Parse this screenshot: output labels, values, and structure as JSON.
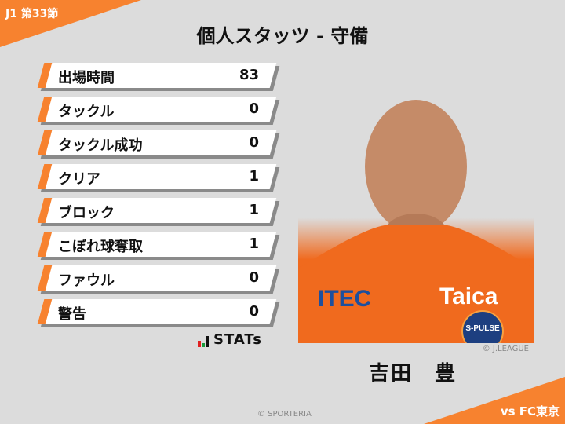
{
  "header": {
    "round": "J1 第33節",
    "title": "個人スタッツ - 守備",
    "opponent": "vs FC東京"
  },
  "stats": [
    {
      "label": "出場時間",
      "value": "83"
    },
    {
      "label": "タックル",
      "value": "0"
    },
    {
      "label": "タックル成功",
      "value": "0"
    },
    {
      "label": "クリア",
      "value": "1"
    },
    {
      "label": "ブロック",
      "value": "1"
    },
    {
      "label": "こぼれ球奪取",
      "value": "1"
    },
    {
      "label": "ファウル",
      "value": "0"
    },
    {
      "label": "警告",
      "value": "0"
    }
  ],
  "logo": {
    "text": "STATs"
  },
  "player": {
    "name": "吉田　豊",
    "photo_credit": "© J.LEAGUE",
    "jersey_sponsors": [
      "ITEC",
      "Taica"
    ],
    "club_badge": "S-PULSE"
  },
  "footer": {
    "copyright": "© SPORTERIA"
  },
  "colors": {
    "accent": "#f7822f",
    "background": "#dcdcdc"
  }
}
